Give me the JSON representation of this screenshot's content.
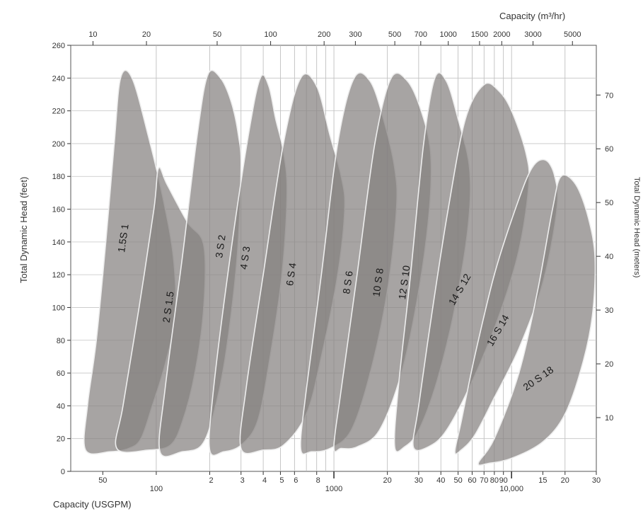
{
  "chart_data": {
    "type": "area",
    "title": "",
    "xlabel_bottom": "Capacity (USGPM)",
    "xlabel_top": "Capacity (m³/hr)",
    "ylabel_left": "Total Dynamic Head (feet)",
    "ylabel_right": "Total Dynamic Head (meters)",
    "x_scale": "log",
    "xlim_usgpm": [
      33,
      30000
    ],
    "ylim_feet": [
      0,
      260
    ],
    "y_ticks_feet": [
      0,
      20,
      40,
      60,
      80,
      100,
      120,
      140,
      160,
      180,
      200,
      220,
      240,
      260
    ],
    "y_ticks_meters": [
      10,
      20,
      30,
      40,
      50,
      60,
      70
    ],
    "x_ticks_bottom": [
      {
        "v": 50,
        "label": "50"
      },
      {
        "v": 100,
        "label": "100"
      },
      {
        "v": 200,
        "label": "2"
      },
      {
        "v": 300,
        "label": "3"
      },
      {
        "v": 400,
        "label": "4"
      },
      {
        "v": 500,
        "label": "5"
      },
      {
        "v": 600,
        "label": "6"
      },
      {
        "v": 800,
        "label": "8"
      },
      {
        "v": 1000,
        "label": "1000"
      },
      {
        "v": 2000,
        "label": "20"
      },
      {
        "v": 3000,
        "label": "30"
      },
      {
        "v": 4000,
        "label": "40"
      },
      {
        "v": 5000,
        "label": "50"
      },
      {
        "v": 6000,
        "label": "60"
      },
      {
        "v": 7000,
        "label": "70"
      },
      {
        "v": 8000,
        "label": "80"
      },
      {
        "v": 9000,
        "label": "90"
      },
      {
        "v": 10000,
        "label": "10,000"
      },
      {
        "v": 15000,
        "label": "15"
      },
      {
        "v": 20000,
        "label": "20"
      },
      {
        "v": 30000,
        "label": "30"
      }
    ],
    "x_ticks_top": [
      {
        "v": 10,
        "label": "10"
      },
      {
        "v": 20,
        "label": "20"
      },
      {
        "v": 50,
        "label": "50"
      },
      {
        "v": 100,
        "label": "100"
      },
      {
        "v": 200,
        "label": "200"
      },
      {
        "v": 300,
        "label": "300"
      },
      {
        "v": 500,
        "label": "500"
      },
      {
        "v": 700,
        "label": "700"
      },
      {
        "v": 1000,
        "label": "1000"
      },
      {
        "v": 1500,
        "label": "1500"
      },
      {
        "v": 2000,
        "label": "2000"
      },
      {
        "v": 3000,
        "label": "3000"
      },
      {
        "v": 5000,
        "label": "5000"
      }
    ],
    "grid": true,
    "series": [
      {
        "name": "1.5S 1",
        "label_at": [
          68,
          142
        ],
        "label_rot": -82,
        "points": [
          [
            40,
            13
          ],
          [
            41,
            40
          ],
          [
            46,
            80
          ],
          [
            52,
            140
          ],
          [
            58,
            200
          ],
          [
            63,
            240
          ],
          [
            73,
            240
          ],
          [
            90,
            205
          ],
          [
            110,
            165
          ],
          [
            125,
            130
          ],
          [
            128,
            95
          ],
          [
            112,
            65
          ],
          [
            95,
            40
          ],
          [
            82,
            20
          ],
          [
            70,
            14
          ],
          [
            55,
            12
          ],
          [
            40,
            13
          ]
        ]
      },
      {
        "name": "2 S 1.5",
        "label_at": [
          122,
          100
        ],
        "label_rot": -82,
        "points": [
          [
            60,
            14
          ],
          [
            65,
            40
          ],
          [
            80,
            100
          ],
          [
            97,
            160
          ],
          [
            103,
            185
          ],
          [
            115,
            175
          ],
          [
            150,
            152
          ],
          [
            185,
            138
          ],
          [
            185,
            100
          ],
          [
            165,
            60
          ],
          [
            140,
            30
          ],
          [
            120,
            16
          ],
          [
            90,
            13
          ],
          [
            60,
            14
          ]
        ]
      },
      {
        "name": "3 S 2",
        "label_at": [
          240,
          137
        ],
        "label_rot": -82,
        "points": [
          [
            105,
            12
          ],
          [
            112,
            50
          ],
          [
            140,
            130
          ],
          [
            170,
            205
          ],
          [
            195,
            242
          ],
          [
            230,
            240
          ],
          [
            265,
            225
          ],
          [
            290,
            205
          ],
          [
            300,
            185
          ],
          [
            285,
            130
          ],
          [
            245,
            70
          ],
          [
            210,
            35
          ],
          [
            180,
            16
          ],
          [
            140,
            12
          ],
          [
            105,
            12
          ]
        ]
      },
      {
        "name": "4 S 3",
        "label_at": [
          330,
          130
        ],
        "label_rot": -82,
        "points": [
          [
            200,
            13
          ],
          [
            210,
            50
          ],
          [
            260,
            130
          ],
          [
            330,
            205
          ],
          [
            385,
            240
          ],
          [
            430,
            235
          ],
          [
            470,
            215
          ],
          [
            520,
            195
          ],
          [
            545,
            170
          ],
          [
            510,
            120
          ],
          [
            430,
            65
          ],
          [
            370,
            30
          ],
          [
            300,
            16
          ],
          [
            240,
            12
          ],
          [
            200,
            13
          ]
        ]
      },
      {
        "name": "6 S 4",
        "label_at": [
          600,
          120
        ],
        "label_rot": -82,
        "points": [
          [
            300,
            14
          ],
          [
            320,
            50
          ],
          [
            400,
            120
          ],
          [
            520,
            200
          ],
          [
            650,
            240
          ],
          [
            800,
            235
          ],
          [
            950,
            205
          ],
          [
            1100,
            180
          ],
          [
            1150,
            160
          ],
          [
            1050,
            120
          ],
          [
            850,
            70
          ],
          [
            700,
            35
          ],
          [
            520,
            16
          ],
          [
            400,
            13
          ],
          [
            300,
            14
          ]
        ]
      },
      {
        "name": "8 S 6",
        "label_at": [
          1250,
          115
        ],
        "label_rot": -82,
        "points": [
          [
            650,
            14
          ],
          [
            700,
            50
          ],
          [
            850,
            120
          ],
          [
            1050,
            200
          ],
          [
            1300,
            240
          ],
          [
            1600,
            238
          ],
          [
            1900,
            215
          ],
          [
            2200,
            185
          ],
          [
            2250,
            160
          ],
          [
            2000,
            110
          ],
          [
            1600,
            60
          ],
          [
            1250,
            25
          ],
          [
            950,
            14
          ],
          [
            750,
            12
          ],
          [
            650,
            14
          ]
        ]
      },
      {
        "name": "10 S 8",
        "label_at": [
          1850,
          115
        ],
        "label_rot": -82,
        "points": [
          [
            1000,
            15
          ],
          [
            1100,
            50
          ],
          [
            1350,
            120
          ],
          [
            1700,
            200
          ],
          [
            2100,
            240
          ],
          [
            2600,
            238
          ],
          [
            3100,
            220
          ],
          [
            3500,
            195
          ],
          [
            3450,
            160
          ],
          [
            3000,
            110
          ],
          [
            2400,
            60
          ],
          [
            1800,
            25
          ],
          [
            1350,
            15
          ],
          [
            1100,
            14
          ],
          [
            1000,
            15
          ]
        ]
      },
      {
        "name": "12 S 10",
        "label_at": [
          2600,
          115
        ],
        "label_rot": -82,
        "points": [
          [
            2200,
            15
          ],
          [
            2300,
            50
          ],
          [
            2700,
            120
          ],
          [
            3200,
            200
          ],
          [
            3700,
            240
          ],
          [
            4300,
            238
          ],
          [
            5000,
            215
          ],
          [
            5800,
            185
          ],
          [
            5700,
            150
          ],
          [
            4800,
            100
          ],
          [
            3800,
            55
          ],
          [
            3000,
            25
          ],
          [
            2500,
            15
          ],
          [
            2200,
            15
          ]
        ]
      },
      {
        "name": "14 S 12",
        "label_at": [
          5300,
          110
        ],
        "label_rot": -60,
        "points": [
          [
            2800,
            15
          ],
          [
            3000,
            40
          ],
          [
            3600,
            100
          ],
          [
            4400,
            160
          ],
          [
            5500,
            215
          ],
          [
            7000,
            236
          ],
          [
            8500,
            232
          ],
          [
            10000,
            220
          ],
          [
            12000,
            195
          ],
          [
            12500,
            175
          ],
          [
            11000,
            135
          ],
          [
            8500,
            95
          ],
          [
            6000,
            55
          ],
          [
            4300,
            25
          ],
          [
            3400,
            15
          ],
          [
            2800,
            15
          ]
        ]
      },
      {
        "name": "16 S 14",
        "label_at": [
          8700,
          85
        ],
        "label_rot": -60,
        "points": [
          [
            4800,
            12
          ],
          [
            5200,
            30
          ],
          [
            6200,
            70
          ],
          [
            8000,
            120
          ],
          [
            10500,
            160
          ],
          [
            13000,
            185
          ],
          [
            15500,
            190
          ],
          [
            17500,
            180
          ],
          [
            18000,
            160
          ],
          [
            15000,
            115
          ],
          [
            11000,
            75
          ],
          [
            8000,
            45
          ],
          [
            6200,
            22
          ],
          [
            5200,
            13
          ],
          [
            4800,
            12
          ]
        ]
      },
      {
        "name": "20 S 18",
        "label_at": [
          14500,
          55
        ],
        "label_rot": -35,
        "points": [
          [
            6500,
            5
          ],
          [
            8000,
            20
          ],
          [
            11000,
            60
          ],
          [
            14000,
            110
          ],
          [
            17000,
            160
          ],
          [
            19000,
            180
          ],
          [
            23000,
            175
          ],
          [
            27000,
            155
          ],
          [
            29500,
            130
          ],
          [
            28500,
            95
          ],
          [
            25000,
            65
          ],
          [
            20000,
            35
          ],
          [
            15000,
            18
          ],
          [
            10000,
            8
          ],
          [
            7500,
            5
          ],
          [
            6500,
            5
          ]
        ]
      }
    ]
  }
}
